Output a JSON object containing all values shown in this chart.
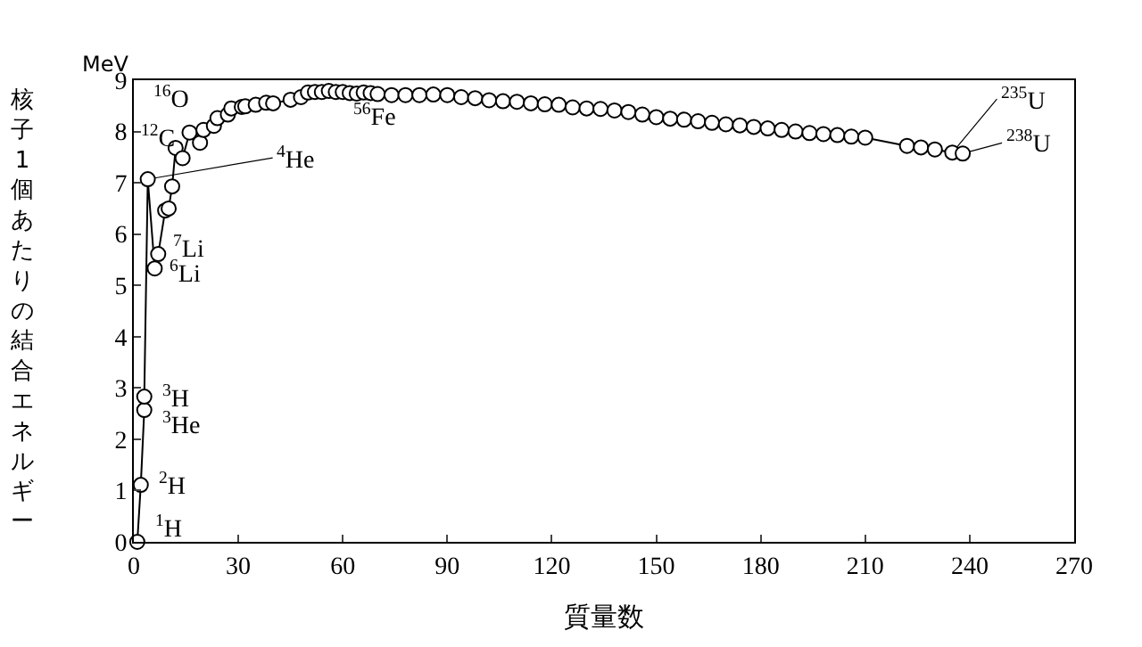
{
  "chart_data": {
    "type": "line",
    "xlabel": "質量数",
    "ylabel": "核子1個あたりの結合エネルギー",
    "xlim": [
      0,
      270
    ],
    "ylim": [
      0,
      9
    ],
    "xticks": [
      0,
      30,
      60,
      90,
      120,
      150,
      180,
      210,
      240,
      270
    ],
    "yticks": [
      0,
      1,
      2,
      3,
      4,
      5,
      6,
      7,
      8,
      9
    ],
    "marker": "circle",
    "line_style": "solid",
    "series": [
      {
        "color": "#000000",
        "x": [
          1,
          2,
          3,
          3,
          4,
          6,
          7,
          9,
          10,
          11,
          12,
          14,
          16,
          19,
          20,
          23,
          24,
          27,
          28,
          31,
          32,
          35,
          38,
          40,
          45,
          48,
          50,
          52,
          54,
          56,
          58,
          60,
          62,
          64,
          66,
          68,
          70,
          74,
          78,
          82,
          86,
          90,
          94,
          98,
          102,
          106,
          110,
          114,
          118,
          122,
          126,
          130,
          134,
          138,
          142,
          146,
          150,
          154,
          158,
          162,
          166,
          170,
          174,
          178,
          182,
          186,
          190,
          194,
          198,
          202,
          206,
          210,
          222,
          226,
          230,
          235,
          238
        ],
        "values": [
          0,
          1.11,
          2.57,
          2.83,
          7.07,
          5.33,
          5.61,
          6.46,
          6.5,
          6.93,
          7.68,
          7.48,
          7.98,
          7.78,
          8.03,
          8.11,
          8.26,
          8.33,
          8.45,
          8.48,
          8.49,
          8.52,
          8.56,
          8.55,
          8.62,
          8.67,
          8.76,
          8.77,
          8.77,
          8.79,
          8.77,
          8.77,
          8.75,
          8.74,
          8.76,
          8.75,
          8.73,
          8.71,
          8.71,
          8.71,
          8.72,
          8.71,
          8.67,
          8.65,
          8.61,
          8.59,
          8.58,
          8.55,
          8.53,
          8.52,
          8.47,
          8.45,
          8.44,
          8.41,
          8.38,
          8.33,
          8.28,
          8.25,
          8.23,
          8.2,
          8.17,
          8.14,
          8.12,
          8.09,
          8.06,
          8.03,
          8.0,
          7.97,
          7.95,
          7.93,
          7.9,
          7.88,
          7.72,
          7.69,
          7.65,
          7.59,
          7.57
        ]
      }
    ],
    "annotations": [
      "MeV",
      {
        "text": "$^{1}$H",
        "x": 1,
        "y": 0
      },
      {
        "text": "$^{2}$H",
        "x": 2,
        "y": 1.11
      },
      {
        "text": "$^{3}$H",
        "x": 3,
        "y": 2.83
      },
      {
        "text": "$^{3}$He",
        "x": 3,
        "y": 2.57
      },
      {
        "text": "$^{6}$Li",
        "x": 6,
        "y": 5.33
      },
      {
        "text": "$^{7}$Li",
        "x": 7,
        "y": 5.61
      },
      {
        "text": "$^{4}$He",
        "x": 4,
        "y": 7.07
      },
      {
        "text": "$^{12}$C",
        "x": 12,
        "y": 7.68
      },
      {
        "text": "$^{16}$O",
        "x": 16,
        "y": 7.98
      },
      {
        "text": "$^{56}$Fe",
        "x": 56,
        "y": 8.79
      },
      {
        "text": "$^{235}$U",
        "x": 235,
        "y": 7.59
      },
      {
        "text": "$^{238}$U",
        "x": 238,
        "y": 7.57
      }
    ]
  }
}
